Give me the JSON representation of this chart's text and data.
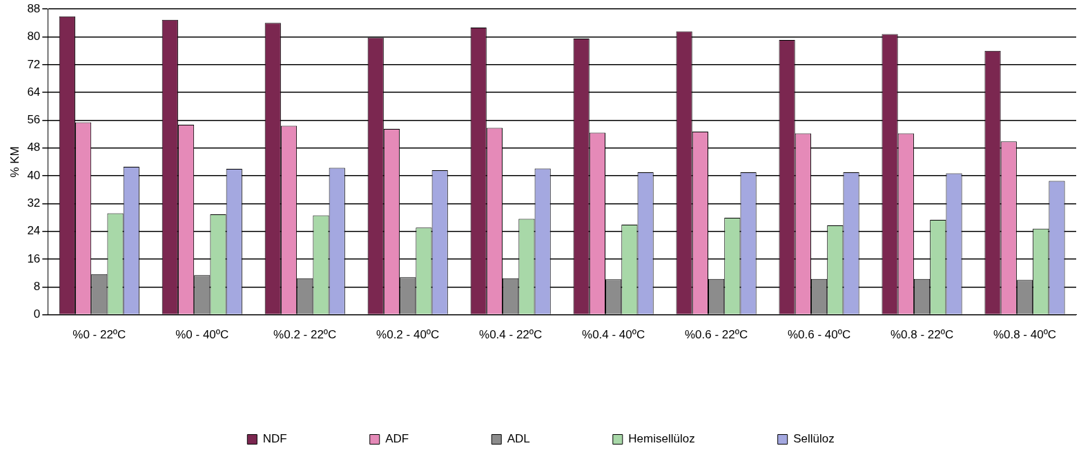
{
  "chart_data": {
    "type": "bar",
    "ylabel": "% KM",
    "categories": [
      "%0 - 22ºC",
      "%0 - 40ºC",
      "%0.2 - 22ºC",
      "%0.2 - 40ºC",
      "%0.4 - 22ºC",
      "%0.4 - 40ºC",
      "%0.6 - 22ºC",
      "%0.6 - 40ºC",
      "%0.8 - 22ºC",
      "%0.8 - 40ºC"
    ],
    "series": [
      {
        "name": "NDF",
        "color": "#7b2750",
        "values": [
          85.9,
          84.9,
          84.0,
          79.8,
          82.7,
          79.5,
          81.6,
          79.1,
          80.8,
          76.0
        ]
      },
      {
        "name": "ADF",
        "color": "#e58ab8",
        "values": [
          55.4,
          54.7,
          54.4,
          53.5,
          53.8,
          52.4,
          52.7,
          52.2,
          52.2,
          49.9
        ]
      },
      {
        "name": "ADL",
        "color": "#8c8c8c",
        "values": [
          11.7,
          11.4,
          10.5,
          10.8,
          10.5,
          10.2,
          10.3,
          10.3,
          10.3,
          10.0
        ]
      },
      {
        "name": "Hemisellüloz",
        "color": "#a8d8a8",
        "values": [
          29.2,
          28.9,
          28.6,
          25.1,
          27.6,
          25.9,
          27.9,
          25.7,
          27.3,
          24.8
        ]
      },
      {
        "name": "Sellüloz",
        "color": "#a4a8e0",
        "values": [
          42.6,
          42.0,
          42.3,
          41.6,
          42.1,
          41.0,
          41.0,
          41.0,
          40.7,
          38.5
        ]
      }
    ],
    "ylim": [
      0,
      88
    ],
    "yticks": [
      0,
      8,
      16,
      24,
      32,
      40,
      48,
      56,
      64,
      72,
      80,
      88
    ],
    "grid": "y",
    "legend": "bottom"
  }
}
